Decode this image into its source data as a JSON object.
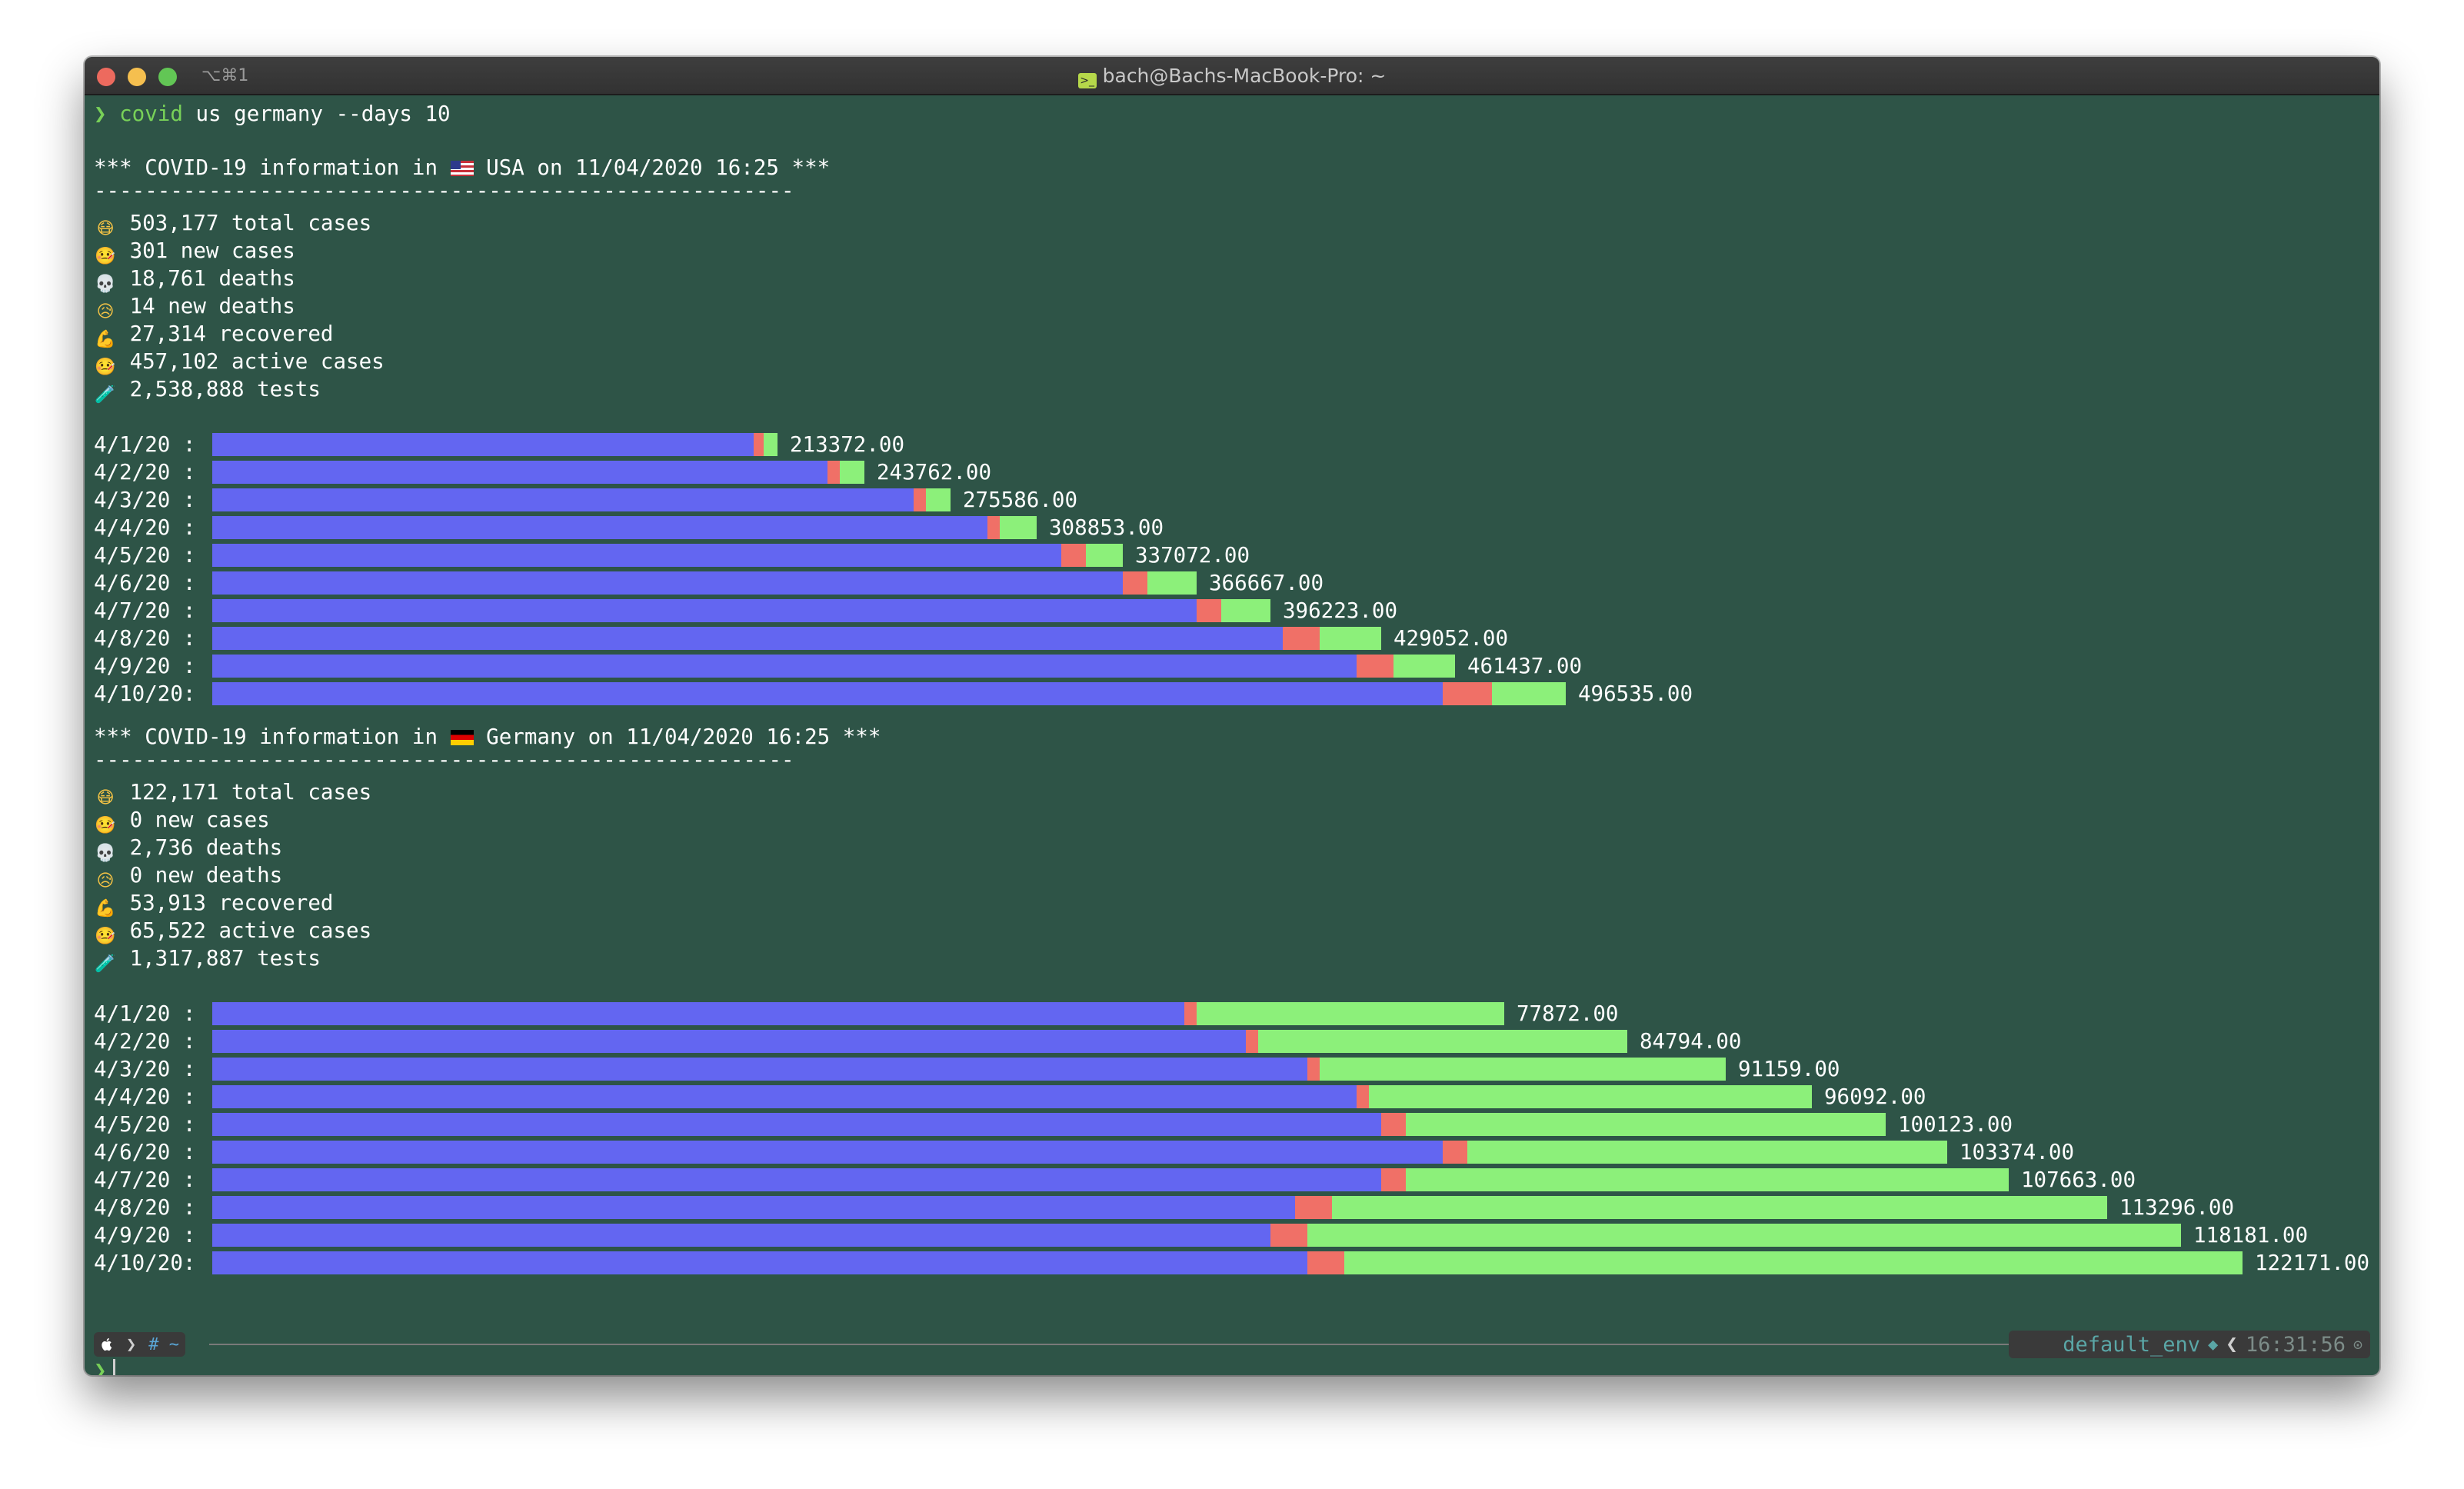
{
  "window": {
    "title": "bach@Bachs-MacBook-Pro: ~",
    "tab_shortcut": "⌥⌘1"
  },
  "prompt": {
    "symbol": "❯",
    "command_name": "covid",
    "command_args": " us germany --days 10"
  },
  "colors": {
    "background": "#2e5447",
    "confirmed": "#6366f1",
    "deaths": "#f07067",
    "recovered": "#8cf07a",
    "prompt": "#78d158"
  },
  "sections": [
    {
      "header_prefix": "*** COVID-19 information in",
      "flag": "us-flag",
      "header_suffix": "USA on 11/04/2020 16:25 ***",
      "rule": "-------------------------------------------------------",
      "stats": [
        {
          "icon": "mask-face-icon",
          "text": "503,177 total cases"
        },
        {
          "icon": "sick-face-icon",
          "text": "301 new cases"
        },
        {
          "icon": "skull-icon",
          "text": "18,761 deaths"
        },
        {
          "icon": "sad-face-icon",
          "text": "14 new deaths"
        },
        {
          "icon": "flexed-biceps-icon",
          "text": "27,314 recovered"
        },
        {
          "icon": "thermometer-face-icon",
          "text": "457,102 active cases"
        },
        {
          "icon": "test-tube-icon",
          "text": "2,538,888 tests"
        }
      ],
      "bars": [
        {
          "label": "4/1/20 :",
          "value": "213372.00",
          "blue": 440,
          "red": 8,
          "green": 11
        },
        {
          "label": "4/2/20 :",
          "value": "243762.00",
          "blue": 500,
          "red": 10,
          "green": 20
        },
        {
          "label": "4/3/20 :",
          "value": "275586.00",
          "blue": 570,
          "red": 10,
          "green": 20
        },
        {
          "label": "4/4/20 :",
          "value": "308853.00",
          "blue": 630,
          "red": 10,
          "green": 30
        },
        {
          "label": "4/5/20 :",
          "value": "337072.00",
          "blue": 690,
          "red": 20,
          "green": 30
        },
        {
          "label": "4/6/20 :",
          "value": "366667.00",
          "blue": 740,
          "red": 20,
          "green": 40
        },
        {
          "label": "4/7/20 :",
          "value": "396223.00",
          "blue": 800,
          "red": 20,
          "green": 40
        },
        {
          "label": "4/8/20 :",
          "value": "429052.00",
          "blue": 870,
          "red": 30,
          "green": 50
        },
        {
          "label": "4/9/20 :",
          "value": "461437.00",
          "blue": 930,
          "red": 30,
          "green": 50
        },
        {
          "label": "4/10/20:",
          "value": "496535.00",
          "blue": 1000,
          "red": 40,
          "green": 60
        }
      ]
    },
    {
      "header_prefix": "*** COVID-19 information in",
      "flag": "germany-flag",
      "header_suffix": "Germany on 11/04/2020 16:25 ***",
      "rule": "-------------------------------------------------------",
      "stats": [
        {
          "icon": "mask-face-icon",
          "text": "122,171 total cases"
        },
        {
          "icon": "sick-face-icon",
          "text": "0 new cases"
        },
        {
          "icon": "skull-icon",
          "text": "2,736 deaths"
        },
        {
          "icon": "sad-face-icon",
          "text": "0 new deaths"
        },
        {
          "icon": "flexed-biceps-icon",
          "text": "53,913 recovered"
        },
        {
          "icon": "thermometer-face-icon",
          "text": "65,522 active cases"
        },
        {
          "icon": "test-tube-icon",
          "text": "1,317,887 tests"
        }
      ],
      "bars": [
        {
          "label": "4/1/20 :",
          "value": "77872.00",
          "blue": 790,
          "red": 10,
          "green": 250
        },
        {
          "label": "4/2/20 :",
          "value": "84794.00",
          "blue": 840,
          "red": 10,
          "green": 300
        },
        {
          "label": "4/3/20 :",
          "value": "91159.00",
          "blue": 890,
          "red": 10,
          "green": 330
        },
        {
          "label": "4/4/20 :",
          "value": "96092.00",
          "blue": 930,
          "red": 10,
          "green": 360
        },
        {
          "label": "4/5/20 :",
          "value": "100123.00",
          "blue": 950,
          "red": 20,
          "green": 390
        },
        {
          "label": "4/6/20 :",
          "value": "103374.00",
          "blue": 1000,
          "red": 20,
          "green": 390
        },
        {
          "label": "4/7/20 :",
          "value": "107663.00",
          "blue": 950,
          "red": 20,
          "green": 490
        },
        {
          "label": "4/8/20 :",
          "value": "113296.00",
          "blue": 880,
          "red": 30,
          "green": 630
        },
        {
          "label": "4/9/20 :",
          "value": "118181.00",
          "blue": 860,
          "red": 30,
          "green": 710
        },
        {
          "label": "4/10/20:",
          "value": "122171.00",
          "blue": 890,
          "red": 30,
          "green": 730
        }
      ]
    }
  ],
  "statusbar": {
    "apple": "",
    "chevron": "❯",
    "dir": "# ~",
    "env": "default_env",
    "diamond": "◆",
    "right_chevron": "❮",
    "time": "16:31:56",
    "clock": "⊙"
  }
}
